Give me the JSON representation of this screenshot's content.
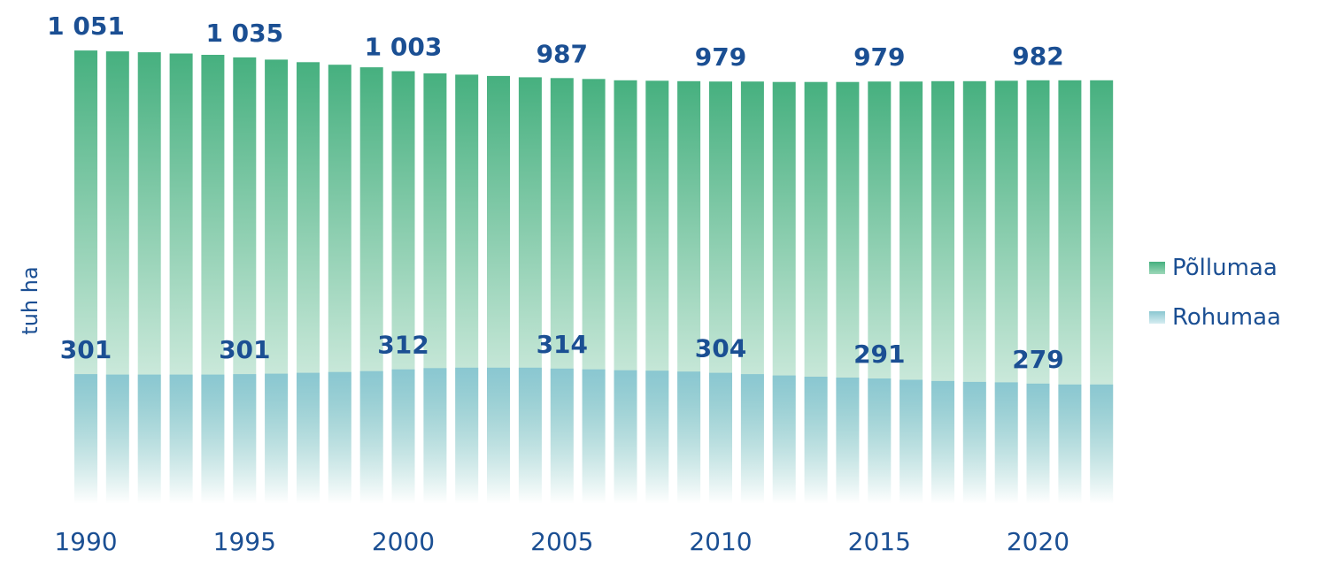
{
  "chart_data": {
    "type": "bar",
    "xlabel": "",
    "ylabel": "tuh ha",
    "ylim": [
      0,
      1100
    ],
    "x": [
      1990,
      1991,
      1992,
      1993,
      1994,
      1995,
      1996,
      1997,
      1998,
      1999,
      2000,
      2001,
      2002,
      2003,
      2004,
      2005,
      2006,
      2007,
      2008,
      2009,
      2010,
      2011,
      2012,
      2013,
      2014,
      2015,
      2016,
      2017,
      2018,
      2019,
      2020,
      2021,
      2022
    ],
    "x_tick_labels": [
      "1990",
      "1995",
      "2000",
      "2005",
      "2010",
      "2015",
      "2020"
    ],
    "series": [
      {
        "name": "Põllumaa",
        "color": "#46b07f",
        "values": [
          1051,
          1049,
          1047,
          1044,
          1041,
          1035,
          1030,
          1024,
          1018,
          1012,
          1003,
          998,
          995,
          992,
          989,
          987,
          985,
          982,
          981,
          980,
          979,
          979,
          978,
          978,
          978,
          979,
          979,
          980,
          980,
          981,
          982,
          982,
          982
        ],
        "labels": [
          "1 051",
          "",
          "",
          "",
          "",
          "1 035",
          "",
          "",
          "",
          "",
          "1 003",
          "",
          "",
          "",
          "",
          "987",
          "",
          "",
          "",
          "",
          "979",
          "",
          "",
          "",
          "",
          "979",
          "",
          "",
          "",
          "",
          "982",
          "",
          ""
        ]
      },
      {
        "name": "Rohumaa",
        "color": "#8ac7d1",
        "values": [
          301,
          300,
          300,
          300,
          300,
          301,
          302,
          304,
          306,
          308,
          312,
          315,
          316,
          316,
          316,
          314,
          312,
          310,
          309,
          307,
          304,
          301,
          298,
          295,
          293,
          291,
          288,
          285,
          283,
          282,
          279,
          277,
          277
        ],
        "labels": [
          "301",
          "",
          "",
          "",
          "",
          "301",
          "",
          "",
          "",
          "",
          "312",
          "",
          "",
          "",
          "",
          "314",
          "",
          "",
          "",
          "",
          "304",
          "",
          "",
          "",
          "",
          "291",
          "",
          "",
          "",
          "",
          "279",
          "",
          ""
        ]
      }
    ],
    "legend_position": "right",
    "grid": false
  }
}
